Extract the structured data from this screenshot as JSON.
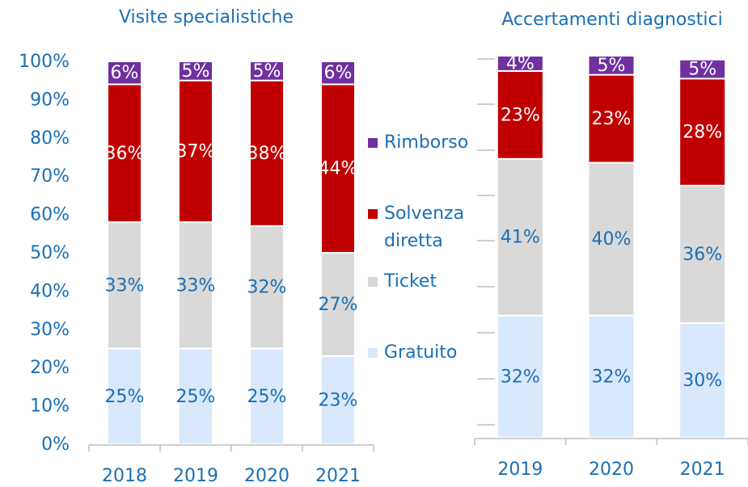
{
  "chart_data": [
    {
      "type": "bar",
      "stacked": true,
      "title": "Visite specialistiche",
      "categories": [
        "2018",
        "2019",
        "2020",
        "2021"
      ],
      "ylim": [
        0,
        100
      ],
      "yticks": [
        {
          "value": 0,
          "label": "0%"
        },
        {
          "value": 10,
          "label": "10%"
        },
        {
          "value": 20,
          "label": "20%"
        },
        {
          "value": 30,
          "label": "30%"
        },
        {
          "value": 40,
          "label": "40%"
        },
        {
          "value": 50,
          "label": "50%"
        },
        {
          "value": 60,
          "label": "60%"
        },
        {
          "value": 70,
          "label": "70%"
        },
        {
          "value": 80,
          "label": "80%"
        },
        {
          "value": 90,
          "label": "90%"
        },
        {
          "value": 100,
          "label": "100%"
        }
      ],
      "series": [
        {
          "name": "Gratuito",
          "color": "#dae8fc",
          "values": [
            25,
            25,
            25,
            23
          ],
          "value_labels": [
            "25%",
            "25%",
            "25%",
            "23%"
          ]
        },
        {
          "name": "Ticket",
          "color": "#d9d9d9",
          "values": [
            33,
            33,
            32,
            27
          ],
          "value_labels": [
            "33%",
            "33%",
            "32%",
            "27%"
          ]
        },
        {
          "name": "Solvenza diretta",
          "color": "#c00000",
          "values": [
            36,
            37,
            38,
            44
          ],
          "value_labels": [
            "36%",
            "37%",
            "38%",
            "44%"
          ]
        },
        {
          "name": "Rimborso",
          "color": "#7030a0",
          "values": [
            6,
            5,
            5,
            6
          ],
          "value_labels": [
            "6%",
            "5%",
            "5%",
            "6%"
          ]
        }
      ]
    },
    {
      "type": "bar",
      "stacked": true,
      "title": "Accertamenti diagnostici",
      "categories": [
        "2019",
        "2020",
        "2021"
      ],
      "ylim": [
        0,
        100
      ],
      "series": [
        {
          "name": "Gratuito",
          "color": "#dae8fc",
          "values": [
            32,
            32,
            30
          ],
          "value_labels": [
            "32%",
            "32%",
            "30%"
          ]
        },
        {
          "name": "Ticket",
          "color": "#d9d9d9",
          "values": [
            41,
            40,
            36
          ],
          "value_labels": [
            "41%",
            "40%",
            "36%"
          ]
        },
        {
          "name": "Solvenza diretta",
          "color": "#c00000",
          "values": [
            23,
            23,
            28
          ],
          "value_labels": [
            "23%",
            "23%",
            "28%"
          ]
        },
        {
          "name": "Rimborso",
          "color": "#7030a0",
          "values": [
            4,
            5,
            5
          ],
          "value_labels": [
            "4%",
            "5%",
            "5%"
          ]
        }
      ]
    }
  ]
}
